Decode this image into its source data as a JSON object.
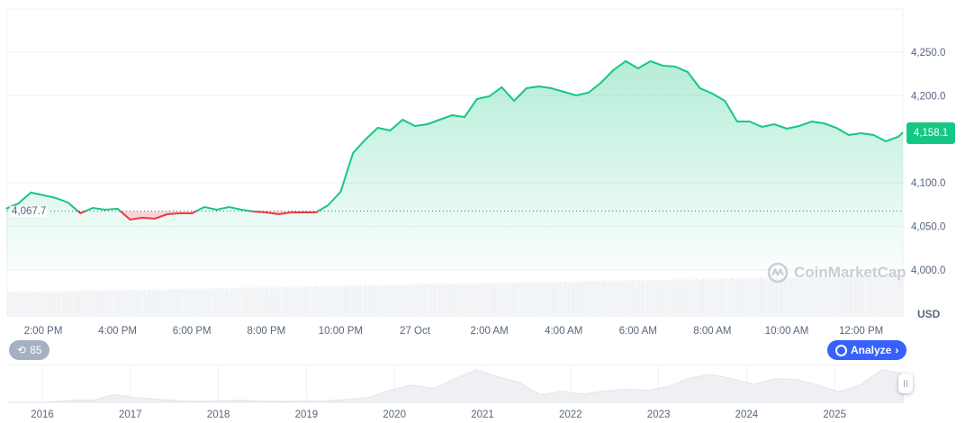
{
  "chart_data": {
    "type": "area",
    "currency_label": "USD",
    "y_ticks": [
      "4,000.0",
      "4,050.0",
      "4,100.0",
      "4,200.0",
      "4,250.0"
    ],
    "y_tick_values": [
      4000,
      4050,
      4100,
      4200,
      4250
    ],
    "ylim": [
      3950,
      4260
    ],
    "x_ticks": [
      "2:00 PM",
      "4:00 PM",
      "6:00 PM",
      "8:00 PM",
      "10:00 PM",
      "27 Oct",
      "2:00 AM",
      "4:00 AM",
      "6:00 AM",
      "8:00 AM",
      "10:00 AM",
      "12:00 PM"
    ],
    "x_tick_hours": [
      14,
      16,
      18,
      20,
      22,
      24,
      26,
      28,
      30,
      32,
      34,
      36
    ],
    "start_time": "Oct 26 13:00",
    "interval_minutes": 20,
    "prices": [
      4070.3,
      4076.4,
      4088.8,
      4085.8,
      4082.7,
      4077.5,
      4065.1,
      4071.3,
      4069.2,
      4070.3,
      4057.9,
      4060.0,
      4058.9,
      4064.1,
      4065.1,
      4065.1,
      4072.3,
      4069.2,
      4072.3,
      4069.2,
      4067.2,
      4066.1,
      4064.1,
      4066.1,
      4066.1,
      4066.1,
      4074.4,
      4089.9,
      4134.3,
      4149.8,
      4163.2,
      4160.1,
      4172.5,
      4165.3,
      4167.4,
      4172.5,
      4177.7,
      4175.6,
      4196.3,
      4199.4,
      4209.7,
      4194.2,
      4208.7,
      4210.7,
      4208.7,
      4204.5,
      4200.4,
      4203.5,
      4214.9,
      4229.3,
      4239.7,
      4231.4,
      4239.7,
      4234.5,
      4233.5,
      4227.3,
      4208.7,
      4202.5,
      4194.2,
      4170.5,
      4170.5,
      4164.3,
      4167.4,
      4162.2,
      4165.3,
      4170.5,
      4168.4,
      4163.2,
      4155.0,
      4157.0,
      4155.0,
      4147.7,
      4152.9,
      4158.1
    ],
    "reference_price": 4067.7,
    "reference_label": "4,067.7",
    "current_price": "4,158.1",
    "colors": {
      "up": "#16c784",
      "down": "#ea3943",
      "volume": "#eff2f5",
      "accent": "#3861fb"
    },
    "grid": true,
    "overview": {
      "type": "area",
      "x_ticks": [
        "2016",
        "2017",
        "2018",
        "2019",
        "2020",
        "2021",
        "2022",
        "2023",
        "2024",
        "2025"
      ],
      "prices": [
        10,
        8,
        50,
        300,
        300,
        1100,
        700,
        450,
        250,
        130,
        250,
        300,
        180,
        130,
        200,
        230,
        400,
        730,
        1800,
        2500,
        2000,
        3400,
        4700,
        3700,
        2900,
        1100,
        1600,
        1200,
        1600,
        1900,
        1700,
        2300,
        3500,
        4000,
        3400,
        2600,
        3400,
        3300,
        2500,
        1500,
        2500,
        4700,
        4150
      ]
    },
    "watermark": "CoinMarketCap"
  },
  "controls": {
    "history_count": "85",
    "analyze_label": "Analyze"
  }
}
